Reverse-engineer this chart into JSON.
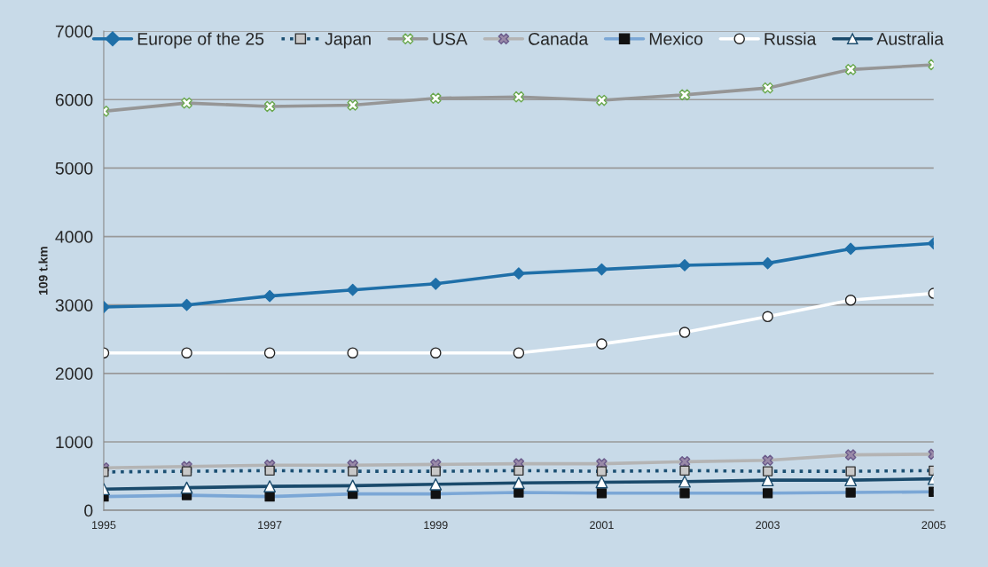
{
  "chart_data": {
    "type": "line",
    "ylabel": "109 t.km",
    "x": [
      1995,
      1996,
      1997,
      1998,
      1999,
      2000,
      2001,
      2002,
      2003,
      2004,
      2005
    ],
    "xlim": [
      1995,
      2005
    ],
    "xticks": [
      1995,
      1997,
      1999,
      2001,
      2003,
      2005
    ],
    "ylim": [
      0,
      7000
    ],
    "yticks": [
      0,
      1000,
      2000,
      3000,
      4000,
      5000,
      6000,
      7000
    ],
    "grid": "y",
    "legend": "top",
    "series": [
      {
        "name": "Europe of the 25",
        "color": "#1f6fa8",
        "marker": "diamond",
        "line_style": "solid",
        "values": [
          2970,
          3000,
          3130,
          3220,
          3310,
          3460,
          3520,
          3580,
          3610,
          3820,
          3900
        ]
      },
      {
        "name": "Japan",
        "color": "#1b4f72",
        "marker": "square",
        "line_style": "dotted",
        "values": [
          560,
          570,
          580,
          570,
          570,
          580,
          570,
          580,
          570,
          570,
          580
        ]
      },
      {
        "name": "USA",
        "color": "#969696",
        "marker": "cross",
        "line_style": "solid",
        "values": [
          5830,
          5950,
          5900,
          5920,
          6020,
          6040,
          5990,
          6070,
          6170,
          6440,
          6510
        ]
      },
      {
        "name": "Canada",
        "color": "#b4b4b4",
        "marker": "cross",
        "line_style": "solid",
        "values": [
          620,
          640,
          660,
          660,
          670,
          680,
          680,
          710,
          730,
          810,
          820
        ]
      },
      {
        "name": "Mexico",
        "color": "#7ba7d6",
        "marker": "square",
        "line_style": "solid",
        "values": [
          200,
          220,
          200,
          240,
          240,
          260,
          250,
          250,
          250,
          260,
          270
        ]
      },
      {
        "name": "Russia",
        "color": "#ffffff",
        "marker": "circle",
        "line_style": "solid",
        "values": [
          2300,
          2300,
          2300,
          2300,
          2300,
          2300,
          2430,
          2600,
          2830,
          3070,
          3170
        ]
      },
      {
        "name": "Australia",
        "color": "#1a4a6b",
        "marker": "triangle",
        "line_style": "solid",
        "values": [
          310,
          330,
          350,
          360,
          380,
          400,
          410,
          420,
          440,
          440,
          460
        ]
      }
    ]
  }
}
